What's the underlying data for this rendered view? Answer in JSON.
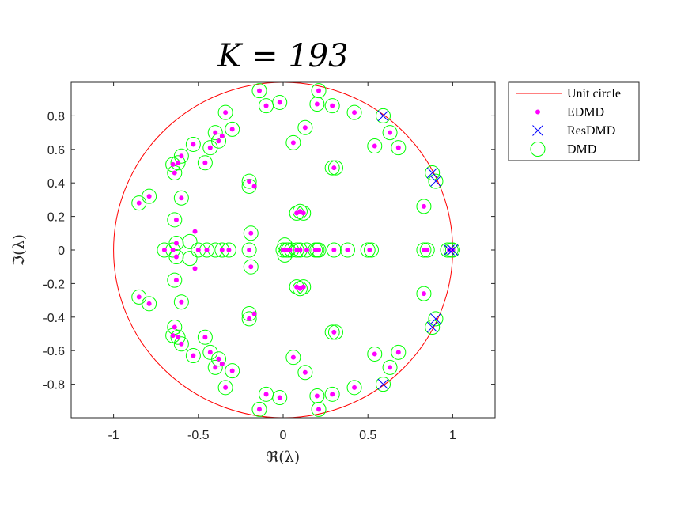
{
  "chart_data": {
    "type": "scatter",
    "title": "K = 193",
    "xlabel": "ℜ(λ)",
    "ylabel": "ℑ(λ)",
    "xlim": [
      -1.25,
      1.25
    ],
    "ylim": [
      -1.0,
      1.0
    ],
    "x_ticks": [
      -1,
      -0.5,
      0,
      0.5,
      1
    ],
    "y_ticks": [
      -0.8,
      -0.6,
      -0.4,
      -0.2,
      0,
      0.2,
      0.4,
      0.6,
      0.8
    ],
    "x_tick_labels": [
      "-1",
      "-0.5",
      "0",
      "0.5",
      "1"
    ],
    "y_tick_labels": [
      "-0.8",
      "-0.6",
      "-0.4",
      "-0.2",
      "0",
      "0.2",
      "0.4",
      "0.6",
      "0.8"
    ],
    "legend": {
      "placement": "outside-top-right"
    },
    "series": [
      {
        "name": "Unit circle",
        "kind": "line",
        "color": "#ff0000",
        "radius": 1
      },
      {
        "name": "EDMD",
        "kind": "dot",
        "color": "#ff00ff",
        "points": [
          [
            -0.65,
            0.0
          ],
          [
            -0.7,
            0.0
          ],
          [
            -0.63,
            0.04
          ],
          [
            -0.63,
            -0.04
          ],
          [
            -0.5,
            0.0
          ],
          [
            -0.45,
            0.0
          ],
          [
            -0.52,
            0.11
          ],
          [
            -0.52,
            -0.11
          ],
          [
            -0.32,
            0.0
          ],
          [
            -0.36,
            0.0
          ],
          [
            -0.2,
            0.0
          ],
          [
            0.0,
            0.0
          ],
          [
            0.02,
            0.0
          ],
          [
            0.04,
            0.0
          ],
          [
            0.08,
            0.0
          ],
          [
            0.1,
            0.0
          ],
          [
            0.14,
            0.0
          ],
          [
            0.19,
            0.0
          ],
          [
            0.2,
            0.0
          ],
          [
            0.21,
            0.0
          ],
          [
            0.3,
            0.0
          ],
          [
            0.38,
            0.0
          ],
          [
            0.51,
            0.0
          ],
          [
            0.85,
            0.0
          ],
          [
            0.83,
            0.0
          ],
          [
            0.98,
            0.0
          ],
          [
            1.0,
            0.0
          ],
          [
            0.08,
            0.22
          ],
          [
            0.1,
            0.23
          ],
          [
            0.12,
            0.22
          ],
          [
            0.08,
            -0.22
          ],
          [
            0.1,
            -0.23
          ],
          [
            0.12,
            -0.22
          ],
          [
            -0.19,
            0.1
          ],
          [
            -0.19,
            -0.1
          ],
          [
            -0.2,
            0.41
          ],
          [
            -0.17,
            0.38
          ],
          [
            -0.2,
            -0.41
          ],
          [
            -0.17,
            -0.38
          ],
          [
            -0.85,
            0.28
          ],
          [
            -0.79,
            0.32
          ],
          [
            -0.85,
            -0.28
          ],
          [
            -0.79,
            -0.32
          ],
          [
            -0.6,
            0.31
          ],
          [
            -0.6,
            -0.31
          ],
          [
            -0.63,
            0.18
          ],
          [
            -0.63,
            -0.18
          ],
          [
            -0.64,
            0.46
          ],
          [
            -0.65,
            0.51
          ],
          [
            -0.62,
            0.52
          ],
          [
            -0.64,
            -0.46
          ],
          [
            -0.65,
            -0.51
          ],
          [
            -0.62,
            -0.52
          ],
          [
            -0.6,
            0.56
          ],
          [
            -0.6,
            -0.56
          ],
          [
            -0.53,
            0.63
          ],
          [
            -0.53,
            -0.63
          ],
          [
            -0.46,
            0.52
          ],
          [
            -0.46,
            -0.52
          ],
          [
            -0.43,
            0.61
          ],
          [
            -0.43,
            -0.61
          ],
          [
            -0.4,
            0.7
          ],
          [
            -0.4,
            -0.7
          ],
          [
            -0.38,
            0.65
          ],
          [
            -0.38,
            -0.65
          ],
          [
            -0.36,
            0.68
          ],
          [
            -0.36,
            -0.68
          ],
          [
            -0.34,
            0.82
          ],
          [
            -0.34,
            -0.82
          ],
          [
            -0.3,
            0.72
          ],
          [
            -0.3,
            -0.72
          ],
          [
            -0.14,
            0.95
          ],
          [
            -0.14,
            -0.95
          ],
          [
            -0.1,
            0.86
          ],
          [
            -0.1,
            -0.86
          ],
          [
            -0.02,
            0.88
          ],
          [
            -0.02,
            -0.88
          ],
          [
            0.06,
            0.64
          ],
          [
            0.06,
            -0.64
          ],
          [
            0.13,
            0.73
          ],
          [
            0.13,
            -0.73
          ],
          [
            0.21,
            0.95
          ],
          [
            0.21,
            -0.95
          ],
          [
            0.2,
            0.87
          ],
          [
            0.2,
            -0.87
          ],
          [
            0.3,
            0.49
          ],
          [
            0.3,
            -0.49
          ],
          [
            0.29,
            0.86
          ],
          [
            0.29,
            -0.86
          ],
          [
            0.42,
            0.82
          ],
          [
            0.42,
            -0.82
          ],
          [
            0.54,
            0.62
          ],
          [
            0.54,
            -0.62
          ],
          [
            0.63,
            0.7
          ],
          [
            0.63,
            -0.7
          ],
          [
            0.68,
            0.61
          ],
          [
            0.68,
            -0.61
          ],
          [
            0.83,
            0.26
          ],
          [
            0.83,
            -0.26
          ]
        ]
      },
      {
        "name": "ResDMD",
        "kind": "cross",
        "color": "#0000ff",
        "points": [
          [
            0.59,
            0.8
          ],
          [
            0.59,
            -0.8
          ],
          [
            0.88,
            0.46
          ],
          [
            0.9,
            0.41
          ],
          [
            0.88,
            -0.46
          ],
          [
            0.9,
            -0.41
          ],
          [
            0.98,
            0.0
          ],
          [
            1.0,
            0.0
          ]
        ]
      },
      {
        "name": "DMD",
        "kind": "circle",
        "color": "#00ff00",
        "points": [
          [
            -0.7,
            0.0
          ],
          [
            -0.65,
            0.0
          ],
          [
            -0.63,
            0.04
          ],
          [
            -0.63,
            -0.04
          ],
          [
            -0.55,
            0.05
          ],
          [
            -0.55,
            -0.05
          ],
          [
            -0.5,
            0.0
          ],
          [
            -0.45,
            0.0
          ],
          [
            -0.4,
            0.0
          ],
          [
            -0.36,
            0.0
          ],
          [
            -0.32,
            0.0
          ],
          [
            -0.2,
            0.0
          ],
          [
            0.0,
            0.0
          ],
          [
            0.01,
            0.03
          ],
          [
            0.01,
            -0.03
          ],
          [
            0.02,
            0.0
          ],
          [
            0.03,
            0.0
          ],
          [
            0.05,
            0.0
          ],
          [
            0.08,
            0.0
          ],
          [
            0.1,
            0.0
          ],
          [
            0.14,
            0.0
          ],
          [
            0.19,
            0.0
          ],
          [
            0.2,
            0.0
          ],
          [
            0.21,
            0.0
          ],
          [
            0.3,
            0.0
          ],
          [
            0.38,
            0.0
          ],
          [
            0.5,
            0.0
          ],
          [
            0.52,
            0.0
          ],
          [
            0.83,
            0.0
          ],
          [
            0.85,
            0.0
          ],
          [
            0.97,
            0.0
          ],
          [
            0.99,
            0.0
          ],
          [
            1.0,
            0.0
          ],
          [
            0.08,
            0.22
          ],
          [
            0.1,
            0.23
          ],
          [
            0.12,
            0.22
          ],
          [
            0.08,
            -0.22
          ],
          [
            0.1,
            -0.23
          ],
          [
            0.12,
            -0.22
          ],
          [
            -0.19,
            0.1
          ],
          [
            -0.19,
            -0.1
          ],
          [
            -0.2,
            0.41
          ],
          [
            -0.2,
            0.38
          ],
          [
            -0.2,
            -0.41
          ],
          [
            -0.2,
            -0.38
          ],
          [
            -0.85,
            0.28
          ],
          [
            -0.79,
            0.32
          ],
          [
            -0.85,
            -0.28
          ],
          [
            -0.79,
            -0.32
          ],
          [
            -0.6,
            0.31
          ],
          [
            -0.6,
            -0.31
          ],
          [
            -0.64,
            0.18
          ],
          [
            -0.64,
            -0.18
          ],
          [
            -0.64,
            0.46
          ],
          [
            -0.65,
            0.51
          ],
          [
            -0.62,
            0.52
          ],
          [
            -0.64,
            -0.46
          ],
          [
            -0.65,
            -0.51
          ],
          [
            -0.62,
            -0.52
          ],
          [
            -0.6,
            0.56
          ],
          [
            -0.6,
            -0.56
          ],
          [
            -0.53,
            0.63
          ],
          [
            -0.53,
            -0.63
          ],
          [
            -0.46,
            0.52
          ],
          [
            -0.46,
            -0.52
          ],
          [
            -0.43,
            0.61
          ],
          [
            -0.43,
            -0.61
          ],
          [
            -0.4,
            0.7
          ],
          [
            -0.4,
            -0.7
          ],
          [
            -0.38,
            0.65
          ],
          [
            -0.38,
            -0.65
          ],
          [
            -0.34,
            0.82
          ],
          [
            -0.34,
            -0.82
          ],
          [
            -0.3,
            0.72
          ],
          [
            -0.3,
            -0.72
          ],
          [
            -0.14,
            0.95
          ],
          [
            -0.14,
            -0.95
          ],
          [
            -0.1,
            0.86
          ],
          [
            -0.1,
            -0.86
          ],
          [
            -0.02,
            0.88
          ],
          [
            -0.02,
            -0.88
          ],
          [
            0.06,
            0.64
          ],
          [
            0.06,
            -0.64
          ],
          [
            0.13,
            0.73
          ],
          [
            0.13,
            -0.73
          ],
          [
            0.21,
            0.95
          ],
          [
            0.21,
            -0.95
          ],
          [
            0.2,
            0.87
          ],
          [
            0.2,
            -0.87
          ],
          [
            0.29,
            0.49
          ],
          [
            0.31,
            0.49
          ],
          [
            0.29,
            -0.49
          ],
          [
            0.31,
            -0.49
          ],
          [
            0.29,
            0.86
          ],
          [
            0.29,
            -0.86
          ],
          [
            0.42,
            0.82
          ],
          [
            0.42,
            -0.82
          ],
          [
            0.54,
            0.62
          ],
          [
            0.54,
            -0.62
          ],
          [
            0.63,
            0.7
          ],
          [
            0.63,
            -0.7
          ],
          [
            0.68,
            0.61
          ],
          [
            0.68,
            -0.61
          ],
          [
            0.83,
            0.26
          ],
          [
            0.83,
            -0.26
          ],
          [
            0.59,
            0.8
          ],
          [
            0.59,
            -0.8
          ],
          [
            0.88,
            0.46
          ],
          [
            0.9,
            0.41
          ],
          [
            0.88,
            -0.46
          ],
          [
            0.9,
            -0.41
          ]
        ]
      }
    ]
  }
}
